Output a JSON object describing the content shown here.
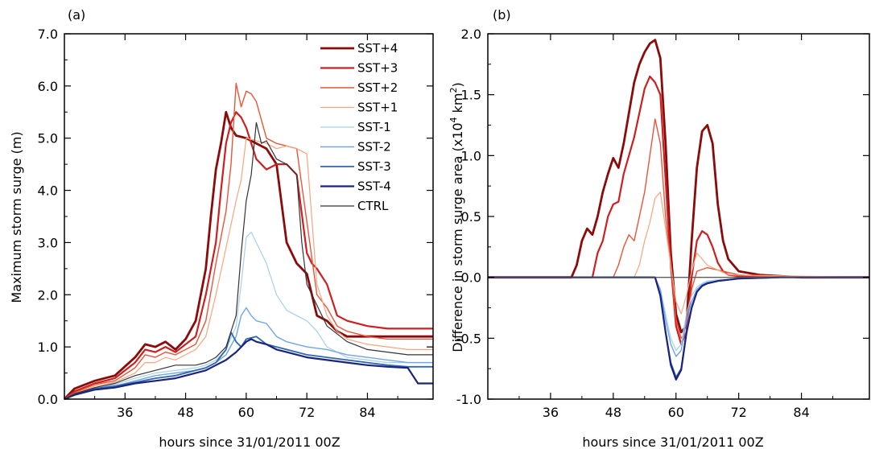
{
  "figure": {
    "panels": [
      "(a)",
      "(b)"
    ]
  },
  "chart_data": [
    {
      "type": "line",
      "panel": "(a)",
      "title": "",
      "xlabel": "hours since 31/01/2011 00Z",
      "ylabel": "Maximum storm surge (m)",
      "xlim": [
        24,
        97
      ],
      "ylim": [
        0,
        7
      ],
      "xticks": [
        36,
        48,
        60,
        72,
        84
      ],
      "yticks": [
        0,
        1,
        2,
        3,
        4,
        5,
        6,
        7
      ],
      "ytick_labels": [
        "0.0",
        "1.0",
        "2.0",
        "3.0",
        "4.0",
        "5.0",
        "6.0",
        "7.0"
      ],
      "legend": "top-right",
      "series": [
        {
          "name": "SST+4",
          "color": "#8b0a0a",
          "width": 2.8,
          "x": [
            24,
            26,
            30,
            34,
            38,
            40,
            42,
            44,
            46,
            48,
            50,
            52,
            53,
            54,
            55,
            56,
            57,
            58,
            60,
            62,
            64,
            66,
            68,
            70,
            72,
            74,
            76,
            78,
            80,
            84,
            88,
            92,
            97
          ],
          "y": [
            0,
            0.2,
            0.35,
            0.45,
            0.8,
            1.05,
            1.0,
            1.1,
            0.95,
            1.15,
            1.5,
            2.5,
            3.5,
            4.4,
            4.9,
            5.5,
            5.2,
            5.05,
            5.0,
            4.9,
            4.8,
            4.5,
            3.0,
            2.6,
            2.4,
            1.6,
            1.5,
            1.3,
            1.2,
            1.2,
            1.2,
            1.2,
            1.2
          ]
        },
        {
          "name": "SST+3",
          "color": "#cc2020",
          "width": 2.2,
          "x": [
            24,
            26,
            30,
            34,
            38,
            40,
            42,
            44,
            46,
            48,
            50,
            52,
            54,
            55,
            56,
            57,
            58,
            59,
            60,
            62,
            64,
            66,
            68,
            70,
            72,
            73,
            74,
            76,
            78,
            80,
            84,
            88,
            92,
            97
          ],
          "y": [
            0,
            0.15,
            0.3,
            0.4,
            0.7,
            0.95,
            0.9,
            1.0,
            0.9,
            1.05,
            1.2,
            2.0,
            3.0,
            4.0,
            4.9,
            5.3,
            5.5,
            5.4,
            5.2,
            4.6,
            4.4,
            4.5,
            4.5,
            4.3,
            2.8,
            2.6,
            2.5,
            2.2,
            1.6,
            1.5,
            1.4,
            1.35,
            1.35,
            1.35
          ]
        },
        {
          "name": "SST+2",
          "color": "#e8553a",
          "width": 1.4,
          "x": [
            24,
            26,
            30,
            34,
            38,
            40,
            42,
            44,
            46,
            48,
            50,
            52,
            54,
            56,
            57,
            58,
            59,
            60,
            61,
            62,
            64,
            66,
            68,
            70,
            72,
            74,
            76,
            78,
            80,
            84,
            88,
            92,
            97
          ],
          "y": [
            0,
            0.12,
            0.28,
            0.35,
            0.6,
            0.85,
            0.8,
            0.9,
            0.85,
            0.95,
            1.05,
            1.5,
            2.6,
            3.6,
            4.5,
            6.05,
            5.6,
            5.9,
            5.85,
            5.7,
            5.0,
            4.9,
            4.85,
            4.8,
            3.4,
            2.0,
            1.75,
            1.4,
            1.3,
            1.2,
            1.15,
            1.15,
            1.15
          ]
        },
        {
          "name": "SST+1",
          "color": "#f4a67e",
          "width": 1.2,
          "x": [
            24,
            26,
            30,
            34,
            38,
            40,
            42,
            44,
            46,
            48,
            50,
            52,
            54,
            56,
            58,
            59,
            60,
            62,
            64,
            66,
            68,
            70,
            72,
            74,
            76,
            78,
            80,
            84,
            88,
            92,
            97
          ],
          "y": [
            0,
            0.1,
            0.25,
            0.32,
            0.5,
            0.7,
            0.7,
            0.8,
            0.75,
            0.85,
            0.95,
            1.2,
            2.0,
            2.9,
            3.8,
            4.2,
            5.0,
            4.95,
            4.9,
            4.8,
            4.85,
            4.8,
            4.7,
            2.2,
            1.6,
            1.3,
            1.15,
            1.05,
            1.0,
            0.95,
            0.95
          ]
        },
        {
          "name": "SST-1",
          "color": "#a6cfee",
          "width": 1.2,
          "x": [
            24,
            26,
            30,
            34,
            38,
            42,
            46,
            50,
            52,
            54,
            56,
            58,
            59,
            60,
            61,
            62,
            64,
            66,
            68,
            70,
            72,
            74,
            76,
            78,
            80,
            84,
            88,
            92,
            97
          ],
          "y": [
            0,
            0.1,
            0.2,
            0.28,
            0.4,
            0.5,
            0.55,
            0.6,
            0.65,
            0.75,
            0.95,
            1.4,
            2.2,
            3.1,
            3.2,
            3.0,
            2.6,
            2.0,
            1.7,
            1.6,
            1.5,
            1.3,
            1.0,
            0.9,
            0.8,
            0.75,
            0.7,
            0.7,
            0.7
          ]
        },
        {
          "name": "SST-2",
          "color": "#6ea5e6",
          "width": 1.4,
          "x": [
            24,
            26,
            30,
            34,
            38,
            42,
            46,
            50,
            52,
            54,
            56,
            58,
            59,
            60,
            61,
            62,
            64,
            66,
            68,
            70,
            72,
            76,
            80,
            84,
            88,
            92,
            97
          ],
          "y": [
            0,
            0.1,
            0.2,
            0.25,
            0.35,
            0.45,
            0.5,
            0.55,
            0.6,
            0.7,
            0.85,
            1.2,
            1.6,
            1.75,
            1.6,
            1.5,
            1.45,
            1.2,
            1.1,
            1.05,
            1.0,
            0.95,
            0.85,
            0.8,
            0.75,
            0.7,
            0.7
          ]
        },
        {
          "name": "SST-3",
          "color": "#2f68b0",
          "width": 1.8,
          "x": [
            24,
            26,
            30,
            34,
            38,
            42,
            46,
            50,
            52,
            54,
            56,
            57,
            58,
            59,
            60,
            62,
            64,
            66,
            68,
            72,
            76,
            80,
            84,
            88,
            92,
            97
          ],
          "y": [
            0,
            0.1,
            0.2,
            0.25,
            0.32,
            0.4,
            0.45,
            0.55,
            0.6,
            0.7,
            0.95,
            1.28,
            1.1,
            1.0,
            1.15,
            1.2,
            1.05,
            1.0,
            0.95,
            0.85,
            0.8,
            0.75,
            0.7,
            0.65,
            0.62,
            0.62
          ]
        },
        {
          "name": "SST-4",
          "color": "#1a237e",
          "width": 2.2,
          "x": [
            24,
            26,
            30,
            34,
            38,
            42,
            46,
            50,
            52,
            54,
            56,
            58,
            60,
            61,
            62,
            64,
            66,
            68,
            72,
            76,
            80,
            84,
            88,
            92,
            94,
            97
          ],
          "y": [
            0,
            0.08,
            0.18,
            0.22,
            0.3,
            0.35,
            0.4,
            0.5,
            0.55,
            0.65,
            0.75,
            0.9,
            1.1,
            1.15,
            1.1,
            1.05,
            0.95,
            0.9,
            0.8,
            0.75,
            0.7,
            0.65,
            0.62,
            0.6,
            0.3,
            0.3
          ]
        },
        {
          "name": "CTRL",
          "color": "#333333",
          "width": 1.2,
          "x": [
            24,
            26,
            30,
            34,
            38,
            42,
            46,
            50,
            52,
            54,
            56,
            58,
            59,
            60,
            61,
            62,
            63,
            64,
            66,
            68,
            70,
            71,
            72,
            74,
            76,
            80,
            84,
            88,
            92,
            97
          ],
          "y": [
            0,
            0.1,
            0.22,
            0.3,
            0.45,
            0.55,
            0.65,
            0.65,
            0.7,
            0.8,
            1.0,
            1.6,
            2.8,
            3.8,
            4.3,
            5.3,
            4.9,
            4.95,
            4.6,
            4.5,
            4.3,
            3.0,
            2.2,
            1.8,
            1.4,
            1.1,
            0.95,
            0.9,
            0.85,
            0.85
          ]
        }
      ]
    },
    {
      "type": "line",
      "panel": "(b)",
      "title": "",
      "xlabel": "hours since 31/01/2011 00Z",
      "ylabel": "Difference in storm surge area (x10",
      "ylabel_sup": "4",
      "ylabel_mid": " km",
      "ylabel_sup2": "2",
      "ylabel_end": ")",
      "xlim": [
        24,
        97
      ],
      "ylim": [
        -1,
        2
      ],
      "xticks": [
        36,
        48,
        60,
        72,
        84
      ],
      "yticks": [
        -1,
        -0.5,
        0,
        0.5,
        1,
        1.5,
        2
      ],
      "ytick_labels": [
        "-1.0",
        "-0.5",
        "0.0",
        "0.5",
        "1.0",
        "1.5",
        "2.0"
      ],
      "series": [
        {
          "name": "SST+4",
          "color": "#8b0a0a",
          "width": 2.8,
          "x": [
            24,
            40,
            41,
            42,
            43,
            44,
            45,
            46,
            47,
            48,
            49,
            50,
            51,
            52,
            53,
            54,
            55,
            56,
            57,
            58,
            59,
            60,
            61,
            62,
            63,
            64,
            65,
            66,
            67,
            68,
            69,
            70,
            72,
            76,
            80,
            84,
            97
          ],
          "y": [
            0,
            0,
            0.1,
            0.3,
            0.4,
            0.35,
            0.5,
            0.7,
            0.85,
            0.98,
            0.9,
            1.1,
            1.35,
            1.6,
            1.75,
            1.85,
            1.92,
            1.95,
            1.8,
            1.1,
            0.2,
            -0.3,
            -0.45,
            -0.4,
            0.3,
            0.9,
            1.2,
            1.25,
            1.1,
            0.6,
            0.3,
            0.15,
            0.05,
            0.02,
            0.01,
            0,
            0
          ]
        },
        {
          "name": "SST+3",
          "color": "#cc2020",
          "width": 2.2,
          "x": [
            24,
            44,
            45,
            46,
            47,
            48,
            49,
            50,
            51,
            52,
            53,
            54,
            55,
            56,
            57,
            58,
            59,
            60,
            61,
            62,
            63,
            64,
            65,
            66,
            67,
            68,
            69,
            70,
            72,
            76,
            84,
            97
          ],
          "y": [
            0,
            0,
            0.2,
            0.3,
            0.5,
            0.6,
            0.62,
            0.85,
            1.0,
            1.15,
            1.35,
            1.55,
            1.65,
            1.6,
            1.5,
            0.8,
            0.1,
            -0.4,
            -0.55,
            -0.45,
            0.0,
            0.3,
            0.38,
            0.35,
            0.25,
            0.12,
            0.05,
            0.02,
            0.01,
            0.01,
            0,
            0
          ]
        },
        {
          "name": "SST+2",
          "color": "#e8553a",
          "width": 1.4,
          "x": [
            24,
            48,
            49,
            50,
            51,
            52,
            53,
            54,
            55,
            56,
            57,
            58,
            59,
            60,
            61,
            62,
            63,
            64,
            66,
            68,
            70,
            72,
            76,
            97
          ],
          "y": [
            0,
            0,
            0.1,
            0.25,
            0.35,
            0.3,
            0.5,
            0.7,
            1.0,
            1.3,
            1.1,
            0.5,
            0.1,
            -0.35,
            -0.5,
            -0.45,
            -0.1,
            0.05,
            0.08,
            0.06,
            0.04,
            0.02,
            0.01,
            0
          ]
        },
        {
          "name": "SST+1",
          "color": "#f4a67e",
          "width": 1.2,
          "x": [
            24,
            52,
            53,
            54,
            55,
            56,
            57,
            58,
            59,
            60,
            61,
            62,
            63,
            64,
            66,
            70,
            97
          ],
          "y": [
            0,
            0,
            0.1,
            0.3,
            0.45,
            0.65,
            0.7,
            0.4,
            0.1,
            -0.2,
            -0.3,
            -0.15,
            0.05,
            0.2,
            0.1,
            0.02,
            0
          ]
        },
        {
          "name": "SST-1",
          "color": "#a6cfee",
          "width": 1.2,
          "x": [
            24,
            56,
            57,
            58,
            59,
            60,
            61,
            62,
            63,
            64,
            65,
            66,
            68,
            72,
            80,
            97
          ],
          "y": [
            0,
            0,
            -0.1,
            -0.3,
            -0.5,
            -0.6,
            -0.55,
            -0.3,
            -0.15,
            -0.08,
            -0.05,
            -0.03,
            -0.02,
            -0.01,
            0,
            0
          ]
        },
        {
          "name": "SST-2",
          "color": "#6ea5e6",
          "width": 1.4,
          "x": [
            24,
            56,
            57,
            58,
            59,
            60,
            61,
            62,
            63,
            64,
            65,
            66,
            68,
            72,
            80,
            97
          ],
          "y": [
            0,
            0,
            -0.1,
            -0.35,
            -0.55,
            -0.65,
            -0.6,
            -0.35,
            -0.2,
            -0.1,
            -0.06,
            -0.04,
            -0.03,
            -0.01,
            0,
            0
          ]
        },
        {
          "name": "SST-3",
          "color": "#2f68b0",
          "width": 1.8,
          "x": [
            24,
            56,
            57,
            58,
            59,
            60,
            61,
            62,
            63,
            64,
            65,
            66,
            68,
            72,
            80,
            97
          ],
          "y": [
            0,
            0,
            -0.15,
            -0.45,
            -0.7,
            -0.82,
            -0.75,
            -0.45,
            -0.25,
            -0.12,
            -0.07,
            -0.05,
            -0.03,
            -0.01,
            0,
            0
          ]
        },
        {
          "name": "SST-4",
          "color": "#1a237e",
          "width": 2.2,
          "x": [
            24,
            56,
            57,
            58,
            59,
            60,
            61,
            62,
            63,
            64,
            65,
            66,
            68,
            72,
            80,
            97
          ],
          "y": [
            0,
            0,
            -0.15,
            -0.45,
            -0.72,
            -0.84,
            -0.76,
            -0.46,
            -0.25,
            -0.12,
            -0.07,
            -0.05,
            -0.03,
            -0.01,
            0,
            0
          ]
        },
        {
          "name": "CTRL",
          "color": "#555555",
          "width": 1.2,
          "x": [
            24,
            97
          ],
          "y": [
            0,
            0
          ]
        }
      ]
    }
  ]
}
